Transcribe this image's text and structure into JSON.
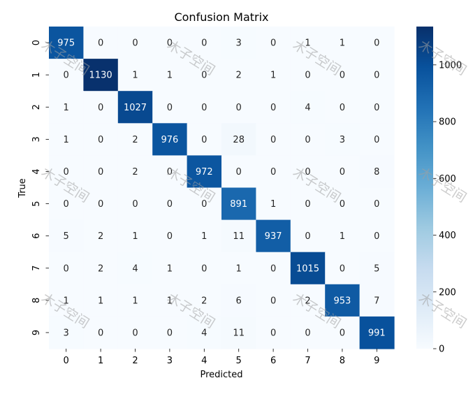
{
  "chart_data": {
    "type": "heatmap",
    "title": "Confusion Matrix",
    "xlabel": "Predicted",
    "ylabel": "True",
    "x_categories": [
      "0",
      "1",
      "2",
      "3",
      "4",
      "5",
      "6",
      "7",
      "8",
      "9"
    ],
    "y_categories": [
      "0",
      "1",
      "2",
      "3",
      "4",
      "5",
      "6",
      "7",
      "8",
      "9"
    ],
    "matrix": [
      [
        975,
        0,
        0,
        0,
        0,
        3,
        0,
        1,
        1,
        0
      ],
      [
        0,
        1130,
        1,
        1,
        0,
        2,
        1,
        0,
        0,
        0
      ],
      [
        1,
        0,
        1027,
        0,
        0,
        0,
        0,
        4,
        0,
        0
      ],
      [
        1,
        0,
        2,
        976,
        0,
        28,
        0,
        0,
        3,
        0
      ],
      [
        0,
        0,
        2,
        0,
        972,
        0,
        0,
        0,
        0,
        8
      ],
      [
        0,
        0,
        0,
        0,
        0,
        891,
        1,
        0,
        0,
        0
      ],
      [
        5,
        2,
        1,
        0,
        1,
        11,
        937,
        0,
        1,
        0
      ],
      [
        0,
        2,
        4,
        1,
        0,
        1,
        0,
        1015,
        0,
        5
      ],
      [
        1,
        1,
        1,
        1,
        2,
        6,
        0,
        2,
        953,
        7
      ],
      [
        3,
        0,
        0,
        0,
        4,
        11,
        0,
        0,
        0,
        991
      ]
    ],
    "colorbar": {
      "min": 0,
      "max": 1135,
      "ticks": [
        0,
        200,
        400,
        600,
        800,
        1000
      ]
    },
    "colormap": "Blues",
    "grid": false
  },
  "watermark": {
    "text": "木子空间"
  }
}
